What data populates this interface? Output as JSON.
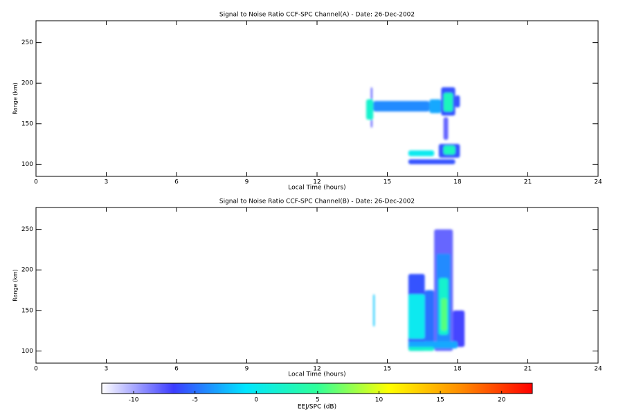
{
  "chart_data": [
    {
      "type": "heatmap",
      "title": "Signal to Noise Ratio CCF-SPC Channel(A) - Date: 26-Dec-2002",
      "xlabel": "Local Time (hours)",
      "ylabel": "Range (km)",
      "xlim": [
        0,
        24
      ],
      "xticks": [
        0,
        3,
        6,
        9,
        12,
        15,
        18,
        21,
        24
      ],
      "ylim": [
        85,
        277
      ],
      "yticks": [
        100,
        150,
        200,
        250
      ],
      "patches": [
        {
          "x": [
            14.3,
            14.35
          ],
          "y": [
            145,
            195
          ],
          "value": -7
        },
        {
          "x": [
            14.1,
            14.4
          ],
          "y": [
            155,
            180
          ],
          "value": 2
        },
        {
          "x": [
            14.4,
            16.8
          ],
          "y": [
            165,
            178
          ],
          "value": -4
        },
        {
          "x": [
            16.8,
            17.3
          ],
          "y": [
            163,
            180
          ],
          "value": -3
        },
        {
          "x": [
            17.3,
            17.9
          ],
          "y": [
            160,
            195
          ],
          "value": -6
        },
        {
          "x": [
            17.9,
            18.1
          ],
          "y": [
            170,
            185
          ],
          "value": -6
        },
        {
          "x": [
            17.4,
            17.8
          ],
          "y": [
            165,
            188
          ],
          "value": 3
        },
        {
          "x": [
            17.4,
            17.6
          ],
          "y": [
            130,
            158
          ],
          "value": -8
        },
        {
          "x": [
            15.9,
            17.9
          ],
          "y": [
            100,
            106
          ],
          "value": -6
        },
        {
          "x": [
            15.9,
            17.0
          ],
          "y": [
            110,
            117
          ],
          "value": 0
        },
        {
          "x": [
            17.2,
            18.1
          ],
          "y": [
            108,
            125
          ],
          "value": -6
        },
        {
          "x": [
            17.4,
            17.9
          ],
          "y": [
            112,
            123
          ],
          "value": 3
        }
      ]
    },
    {
      "type": "heatmap",
      "title": "Signal to Noise Ratio CCF-SPC Channel(B) - Date: 26-Dec-2002",
      "xlabel": "Local Time (hours)",
      "ylabel": "Range (km)",
      "xlim": [
        0,
        24
      ],
      "xticks": [
        0,
        3,
        6,
        9,
        12,
        15,
        18,
        21,
        24
      ],
      "ylim": [
        85,
        277
      ],
      "yticks": [
        100,
        150,
        200,
        250
      ],
      "patches": [
        {
          "x": [
            14.4,
            14.45
          ],
          "y": [
            130,
            170
          ],
          "value": -2
        },
        {
          "x": [
            15.9,
            16.6
          ],
          "y": [
            100,
            195
          ],
          "value": -6
        },
        {
          "x": [
            15.9,
            16.6
          ],
          "y": [
            115,
            170
          ],
          "value": 0
        },
        {
          "x": [
            16.6,
            17.0
          ],
          "y": [
            105,
            175
          ],
          "value": -5
        },
        {
          "x": [
            17.0,
            17.8
          ],
          "y": [
            100,
            250
          ],
          "value": -8
        },
        {
          "x": [
            17.1,
            17.7
          ],
          "y": [
            110,
            220
          ],
          "value": -4
        },
        {
          "x": [
            17.2,
            17.6
          ],
          "y": [
            120,
            190
          ],
          "value": 2
        },
        {
          "x": [
            17.3,
            17.55
          ],
          "y": [
            125,
            165
          ],
          "value": 6
        },
        {
          "x": [
            17.8,
            18.3
          ],
          "y": [
            105,
            150
          ],
          "value": -7
        },
        {
          "x": [
            15.9,
            18.0
          ],
          "y": [
            103,
            112
          ],
          "value": -3
        },
        {
          "x": [
            15.9,
            17.0
          ],
          "y": [
            100,
            105
          ],
          "value": 2
        }
      ]
    }
  ],
  "colorbar": {
    "label": "EEJ/SPC (dB)",
    "zlim": [
      -12.6,
      22.5
    ],
    "ticks": [
      -10,
      -5,
      0,
      5,
      10,
      15,
      20
    ],
    "colormap": [
      "#ffffff",
      "#3c3cff",
      "#00e5ff",
      "#2fff9a",
      "#ffff00",
      "#ff8c00",
      "#ff0000"
    ]
  }
}
